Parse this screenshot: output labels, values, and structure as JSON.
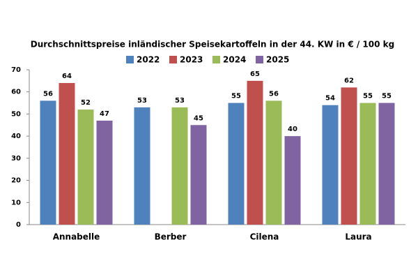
{
  "chart_data": {
    "type": "bar",
    "title": "Durchschnittspreise inländischer Speisekartoffeln in der 44. KW in € / 100 kg",
    "categories": [
      "Annabelle",
      "Berber",
      "Cilena",
      "Laura"
    ],
    "series": [
      {
        "name": "2022",
        "color": "#4f81bd",
        "values": [
          56,
          53,
          55,
          54
        ]
      },
      {
        "name": "2023",
        "color": "#c0504d",
        "values": [
          64,
          null,
          65,
          62
        ]
      },
      {
        "name": "2024",
        "color": "#9bbb59",
        "values": [
          52,
          53,
          56,
          55
        ]
      },
      {
        "name": "2025",
        "color": "#8064a2",
        "values": [
          47,
          45,
          40,
          55
        ]
      }
    ],
    "ylim": [
      0,
      70
    ],
    "yticks": [
      0,
      10,
      20,
      30,
      40,
      50,
      60,
      70
    ],
    "grid": false
  }
}
